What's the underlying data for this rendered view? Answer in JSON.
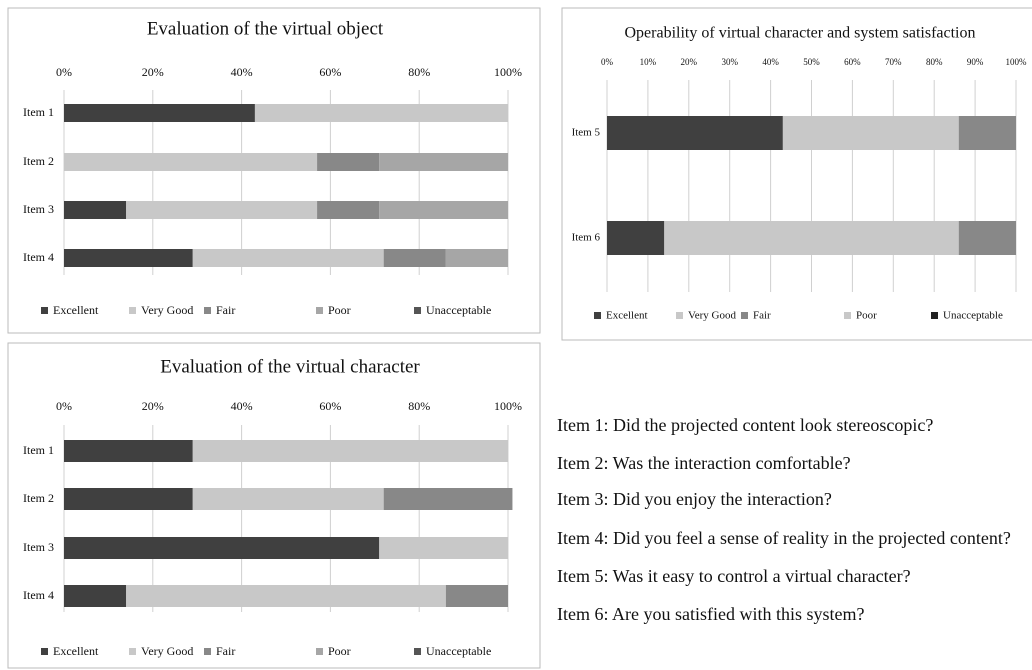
{
  "chart_data": [
    {
      "type": "bar",
      "orientation": "horizontal",
      "stacked": true,
      "title": "Evaluation of the virtual object",
      "categories": [
        "Item 1",
        "Item 2",
        "Item 3",
        "Item 4"
      ],
      "series": [
        {
          "name": "Excellent",
          "color": "#404040",
          "values": [
            43,
            0,
            14,
            29
          ]
        },
        {
          "name": "Very Good",
          "color": "#c8c8c8",
          "values": [
            57,
            57,
            43,
            43
          ]
        },
        {
          "name": "Fair",
          "color": "#888888",
          "values": [
            0,
            14,
            14,
            14
          ]
        },
        {
          "name": "Poor",
          "color": "#a6a6a6",
          "values": [
            0,
            29,
            29,
            14
          ]
        },
        {
          "name": "Unacceptable",
          "color": "#555555",
          "values": [
            0,
            0,
            0,
            0
          ]
        }
      ],
      "xlim": [
        0,
        100
      ],
      "xticks": [
        {
          "value": 0,
          "label": "0%"
        },
        {
          "value": 20,
          "label": "20%"
        },
        {
          "value": 40,
          "label": "40%"
        },
        {
          "value": 60,
          "label": "60%"
        },
        {
          "value": 80,
          "label": "80%"
        },
        {
          "value": 100,
          "label": "100%"
        }
      ],
      "grid": true,
      "legend": "bottom"
    },
    {
      "type": "bar",
      "orientation": "horizontal",
      "stacked": true,
      "title": "Operability of virtual character and system satisfaction",
      "categories": [
        "Item 5",
        "Item 6"
      ],
      "series": [
        {
          "name": "Excellent",
          "color": "#404040",
          "values": [
            43,
            14
          ]
        },
        {
          "name": "Very Good",
          "color": "#c8c8c8",
          "values": [
            43,
            72
          ]
        },
        {
          "name": "Fair",
          "color": "#888888",
          "values": [
            14,
            14
          ]
        },
        {
          "name": "Poor",
          "color": "#c8c8c8",
          "values": [
            0,
            0
          ]
        },
        {
          "name": "Unacceptable",
          "color": "#222222",
          "values": [
            0,
            0
          ]
        }
      ],
      "xlim": [
        0,
        100
      ],
      "xticks": [
        {
          "value": 0,
          "label": "0%"
        },
        {
          "value": 10,
          "label": "10%"
        },
        {
          "value": 20,
          "label": "20%"
        },
        {
          "value": 30,
          "label": "30%"
        },
        {
          "value": 40,
          "label": "40%"
        },
        {
          "value": 50,
          "label": "50%"
        },
        {
          "value": 60,
          "label": "60%"
        },
        {
          "value": 70,
          "label": "70%"
        },
        {
          "value": 80,
          "label": "80%"
        },
        {
          "value": 90,
          "label": "90%"
        },
        {
          "value": 100,
          "label": "100%"
        }
      ],
      "grid": true,
      "legend": "bottom"
    },
    {
      "type": "bar",
      "orientation": "horizontal",
      "stacked": true,
      "title": "Evaluation of the virtual character",
      "categories": [
        "Item 1",
        "Item 2",
        "Item 3",
        "Item 4"
      ],
      "series": [
        {
          "name": "Excellent",
          "color": "#404040",
          "values": [
            29,
            29,
            71,
            14
          ]
        },
        {
          "name": "Very Good",
          "color": "#c8c8c8",
          "values": [
            71,
            43,
            29,
            72
          ]
        },
        {
          "name": "Fair",
          "color": "#888888",
          "values": [
            0,
            29,
            0,
            14
          ]
        },
        {
          "name": "Poor",
          "color": "#a6a6a6",
          "values": [
            0,
            0,
            0,
            0
          ]
        },
        {
          "name": "Unacceptable",
          "color": "#555555",
          "values": [
            0,
            0,
            0,
            0
          ]
        }
      ],
      "xlim": [
        0,
        100
      ],
      "xticks": [
        {
          "value": 0,
          "label": "0%"
        },
        {
          "value": 20,
          "label": "20%"
        },
        {
          "value": 40,
          "label": "40%"
        },
        {
          "value": 60,
          "label": "60%"
        },
        {
          "value": 80,
          "label": "80%"
        },
        {
          "value": 100,
          "label": "100%"
        }
      ],
      "grid": true,
      "legend": "bottom"
    }
  ],
  "notes": [
    "Item 1: Did the projected content look stereoscopic?",
    "Item 2: Was the interaction comfortable?",
    "Item 3: Did you enjoy the interaction?",
    "Item 4: Did you feel a sense of reality in the projected content?",
    "Item 5: Was it easy to control a virtual character?",
    "Item 6: Are you satisfied with this system?"
  ]
}
